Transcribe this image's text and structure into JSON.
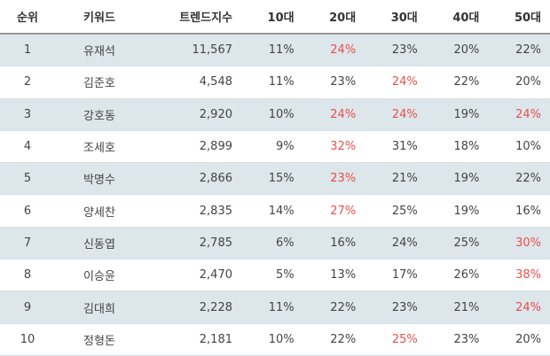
{
  "table": {
    "headers": {
      "rank": "순위",
      "keyword": "키워드",
      "trend_index": "트렌드지수",
      "age10": "10대",
      "age20": "20대",
      "age30": "30대",
      "age40": "40대",
      "age50": "50대"
    },
    "highlight_color": "#e8504a",
    "stripe_color": "#dde6eb",
    "rows": [
      {
        "rank": "1",
        "keyword": "유재석",
        "trend_index": "11,567",
        "age10": "11%",
        "age20": "24%",
        "age30": "23%",
        "age40": "20%",
        "age50": "22%",
        "highlight": "age20"
      },
      {
        "rank": "2",
        "keyword": "김준호",
        "trend_index": "4,548",
        "age10": "11%",
        "age20": "23%",
        "age30": "24%",
        "age40": "22%",
        "age50": "20%",
        "highlight": "age30"
      },
      {
        "rank": "3",
        "keyword": "강호동",
        "trend_index": "2,920",
        "age10": "10%",
        "age20": "24%",
        "age30": "24%",
        "age40": "19%",
        "age50": "24%",
        "highlight": "age20,age30,age50"
      },
      {
        "rank": "4",
        "keyword": "조세호",
        "trend_index": "2,899",
        "age10": "9%",
        "age20": "32%",
        "age30": "31%",
        "age40": "18%",
        "age50": "10%",
        "highlight": "age20"
      },
      {
        "rank": "5",
        "keyword": "박명수",
        "trend_index": "2,866",
        "age10": "15%",
        "age20": "23%",
        "age30": "21%",
        "age40": "19%",
        "age50": "22%",
        "highlight": "age20"
      },
      {
        "rank": "6",
        "keyword": "양세찬",
        "trend_index": "2,835",
        "age10": "14%",
        "age20": "27%",
        "age30": "25%",
        "age40": "19%",
        "age50": "16%",
        "highlight": "age20"
      },
      {
        "rank": "7",
        "keyword": "신동엽",
        "trend_index": "2,785",
        "age10": "6%",
        "age20": "16%",
        "age30": "24%",
        "age40": "25%",
        "age50": "30%",
        "highlight": "age50"
      },
      {
        "rank": "8",
        "keyword": "이승윤",
        "trend_index": "2,470",
        "age10": "5%",
        "age20": "13%",
        "age30": "17%",
        "age40": "26%",
        "age50": "38%",
        "highlight": "age50"
      },
      {
        "rank": "9",
        "keyword": "김대희",
        "trend_index": "2,228",
        "age10": "11%",
        "age20": "22%",
        "age30": "23%",
        "age40": "21%",
        "age50": "24%",
        "highlight": "age50"
      },
      {
        "rank": "10",
        "keyword": "정형돈",
        "trend_index": "2,181",
        "age10": "10%",
        "age20": "22%",
        "age30": "25%",
        "age40": "23%",
        "age50": "20%",
        "highlight": "age30"
      }
    ]
  }
}
